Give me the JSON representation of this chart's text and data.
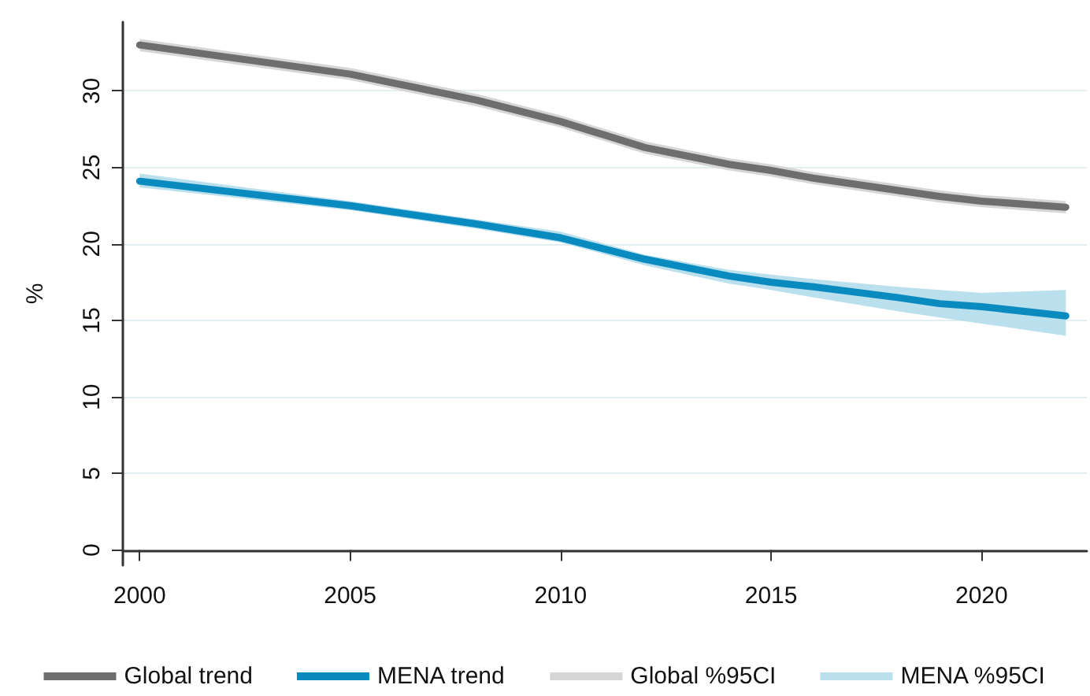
{
  "chart_data": {
    "type": "line",
    "ylabel": "%",
    "x": [
      2000,
      2005,
      2008,
      2010,
      2012,
      2014,
      2015,
      2016,
      2018,
      2019,
      2020,
      2022
    ],
    "xlim": [
      1999.6,
      2022.5
    ],
    "xticks": [
      2000,
      2005,
      2010,
      2015,
      2020
    ],
    "ylim": [
      -1,
      34.5
    ],
    "yticks": [
      0,
      5,
      10,
      15,
      20,
      25,
      30
    ],
    "grid": "y",
    "legend": "bottom",
    "marker": "none",
    "line_style": "solid",
    "annotations": [
      "Global %95CI",
      "MENA %95CI"
    ],
    "series": [
      {
        "name": "Global trend",
        "color": "#6e6e6e",
        "values": [
          33.0,
          31.1,
          29.4,
          28.0,
          26.3,
          25.2,
          24.8,
          24.3,
          23.5,
          23.1,
          22.8,
          22.4
        ],
        "lower": [
          32.6,
          30.7,
          29.0,
          27.6,
          25.9,
          24.8,
          24.4,
          23.9,
          23.1,
          22.7,
          22.4,
          22.0
        ],
        "upper": [
          33.4,
          31.5,
          29.8,
          28.4,
          26.7,
          25.6,
          25.2,
          24.7,
          23.9,
          23.5,
          23.2,
          22.8
        ]
      },
      {
        "name": "MENA trend",
        "color": "#0a8bbf",
        "values": [
          24.1,
          22.5,
          21.3,
          20.4,
          19.0,
          17.9,
          17.5,
          17.2,
          16.5,
          16.1,
          15.9,
          15.3
        ],
        "lower": [
          23.7,
          22.2,
          21.0,
          20.1,
          18.6,
          17.4,
          17.0,
          16.5,
          15.6,
          15.2,
          14.8,
          14.0
        ],
        "upper": [
          24.6,
          22.8,
          21.6,
          20.8,
          19.3,
          18.3,
          18.0,
          17.7,
          17.2,
          17.0,
          16.8,
          17.0
        ]
      }
    ]
  }
}
